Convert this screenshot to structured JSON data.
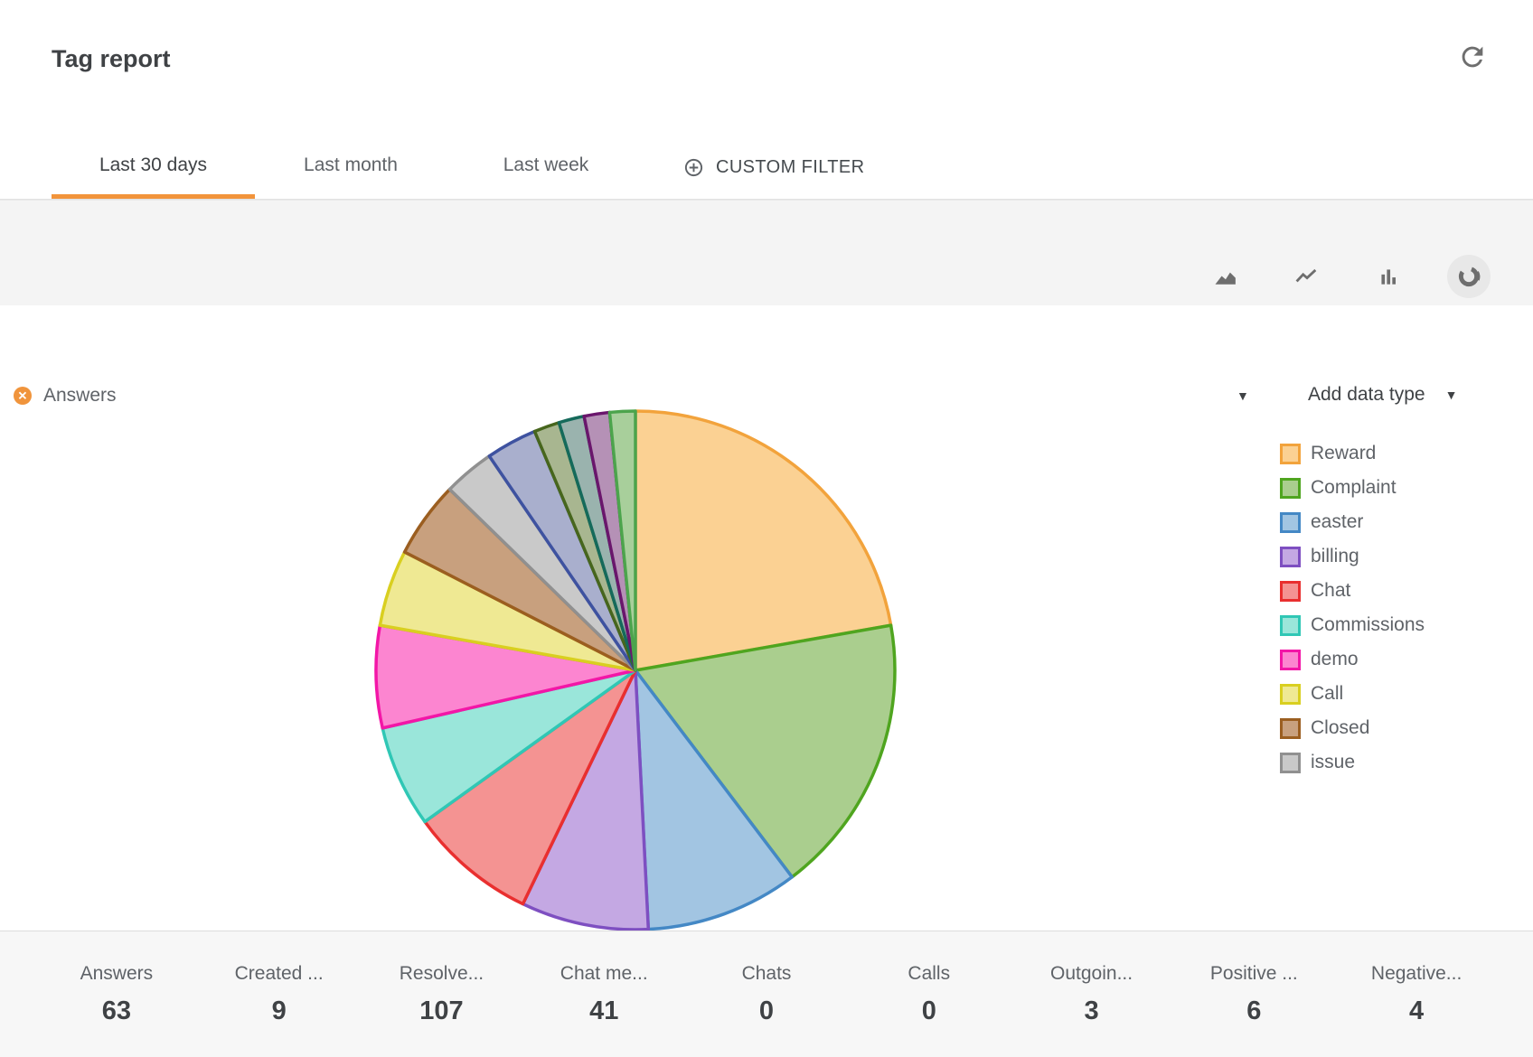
{
  "header": {
    "title": "Tag report"
  },
  "tabs_bar": {
    "tabs": [
      {
        "label": "Last 30 days",
        "active": true
      },
      {
        "label": "Last month",
        "active": false
      },
      {
        "label": "Last week",
        "active": false
      }
    ],
    "custom_filter_label": "CUSTOM FILTER"
  },
  "chart_toolbar": {
    "icons": [
      {
        "name": "area-chart-icon",
        "selected": false
      },
      {
        "name": "line-chart-icon",
        "selected": false
      },
      {
        "name": "bar-chart-icon",
        "selected": false
      },
      {
        "name": "donut-chart-icon",
        "selected": true
      }
    ]
  },
  "series": {
    "label": "Answers",
    "remove_icon": "cancel-icon"
  },
  "add_data_type": {
    "label": "Add data type",
    "caret_icon": "chevron-down-icon"
  },
  "colors": {
    "accent_orange": "#F2943B",
    "band_bg": "#F4F4F4",
    "stats_bg": "#F7F7F7",
    "divider": "#DCDCDC",
    "text_primary": "#3F4245",
    "text_secondary": "#5F6368",
    "icon_gray": "#6E6E6E"
  },
  "chart_data": {
    "type": "pie",
    "title": "Answers",
    "total": 63,
    "legend_position": "right",
    "grid": false,
    "segments": [
      {
        "label": "Reward",
        "value": 14,
        "fill": "#FBD193",
        "stroke": "#F2A33C"
      },
      {
        "label": "Complaint",
        "value": 11,
        "fill": "#AACE8E",
        "stroke": "#4FA51F"
      },
      {
        "label": "easter",
        "value": 6,
        "fill": "#A2C5E2",
        "stroke": "#4488C5"
      },
      {
        "label": "billing",
        "value": 5,
        "fill": "#C4A8E3",
        "stroke": "#7E4FC1"
      },
      {
        "label": "Chat",
        "value": 5,
        "fill": "#F49392",
        "stroke": "#E92F2F"
      },
      {
        "label": "Commissions",
        "value": 4,
        "fill": "#9AE6DA",
        "stroke": "#30C7B5"
      },
      {
        "label": "demo",
        "value": 4,
        "fill": "#FC85D0",
        "stroke": "#F316A7"
      },
      {
        "label": "Call",
        "value": 3,
        "fill": "#EFE993",
        "stroke": "#D9CF20"
      },
      {
        "label": "Closed",
        "value": 3,
        "fill": "#C8A07E",
        "stroke": "#9B5E20"
      },
      {
        "label": "issue",
        "value": 2,
        "fill": "#C9C9C9",
        "stroke": "#909090"
      },
      {
        "label": "",
        "value": 2,
        "fill": "#A9AFCD",
        "stroke": "#3E52A0"
      },
      {
        "label": "",
        "value": 1,
        "fill": "#A8B690",
        "stroke": "#47661D"
      },
      {
        "label": "",
        "value": 1,
        "fill": "#9AB3AE",
        "stroke": "#156A5B"
      },
      {
        "label": "",
        "value": 1,
        "fill": "#B591B6",
        "stroke": "#6A166C"
      },
      {
        "label": "",
        "value": 1,
        "fill": "#A8CF9B",
        "stroke": "#4CA44C"
      }
    ]
  },
  "stats": [
    {
      "label": "Answers",
      "value": "63"
    },
    {
      "label": "Created ...",
      "value": "9"
    },
    {
      "label": "Resolve...",
      "value": "107"
    },
    {
      "label": "Chat me...",
      "value": "41"
    },
    {
      "label": "Chats",
      "value": "0"
    },
    {
      "label": "Calls",
      "value": "0"
    },
    {
      "label": "Outgoin...",
      "value": "3"
    },
    {
      "label": "Positive ...",
      "value": "6"
    },
    {
      "label": "Negative...",
      "value": "4"
    }
  ]
}
